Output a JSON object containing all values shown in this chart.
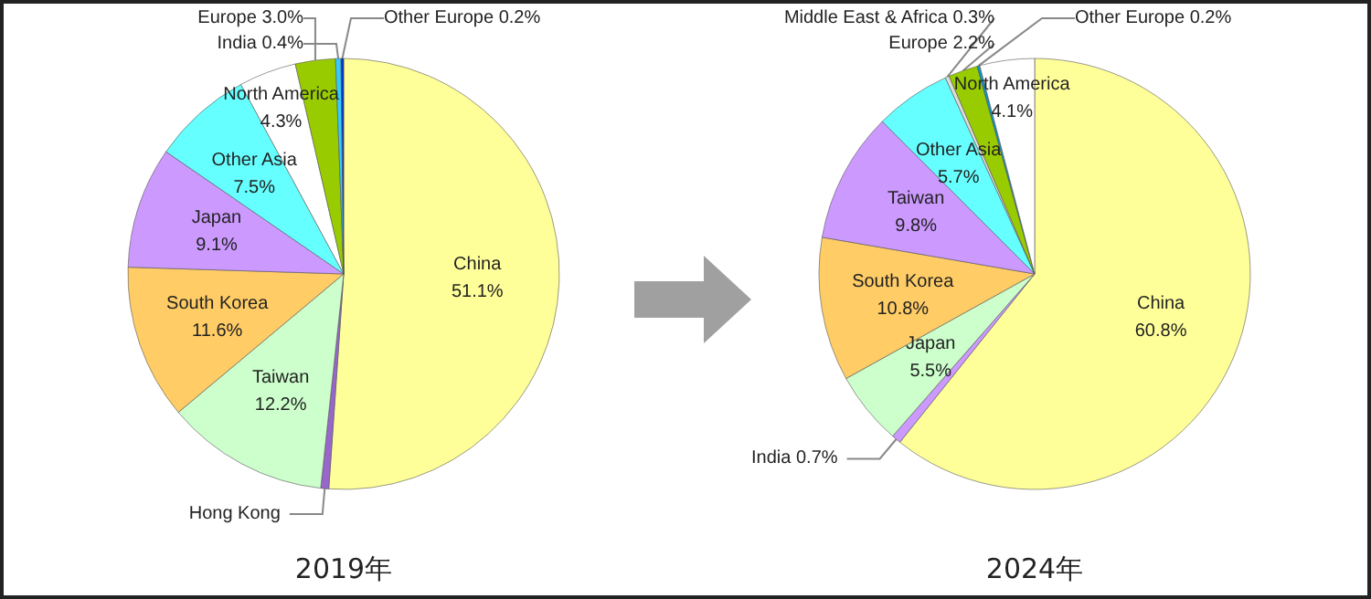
{
  "chart_data": [
    {
      "type": "pie",
      "title": "2019年",
      "categories": [
        "China",
        "Hong Kong",
        "Taiwan",
        "South Korea",
        "Japan",
        "Other Asia",
        "North America",
        "Europe",
        "India",
        "Other Europe"
      ],
      "values": [
        51.1,
        0.6,
        12.2,
        11.6,
        9.1,
        7.5,
        4.3,
        3.0,
        0.4,
        0.2
      ],
      "value_labels": [
        "51.1%",
        null,
        "12.2%",
        "11.6%",
        "9.1%",
        "7.5%",
        "4.3%",
        "3.0%",
        "0.4%",
        "0.2%"
      ],
      "colors": [
        "#ffff99",
        "#9966cc",
        "#ccffcc",
        "#ffcc66",
        "#cc99ff",
        "#66ffff",
        "#ffffff",
        "#99cc00",
        "#33ccff",
        "#0033cc"
      ]
    },
    {
      "type": "pie",
      "title": "2024年",
      "categories": [
        "China",
        "India",
        "Japan",
        "South Korea",
        "Taiwan",
        "Other Asia",
        "Middle East & Africa",
        "Europe",
        "Other Europe",
        "North America"
      ],
      "values": [
        60.8,
        0.7,
        5.5,
        10.8,
        9.8,
        5.7,
        0.3,
        2.2,
        0.2,
        4.1
      ],
      "value_labels": [
        "60.8%",
        "0.7%",
        "5.5%",
        "10.8%",
        "9.8%",
        "5.7%",
        "0.3%",
        "2.2%",
        "0.2%",
        "4.1%"
      ],
      "colors": [
        "#ffff99",
        "#cc99ff",
        "#ccffcc",
        "#ffcc66",
        "#cc99ff",
        "#66ffff",
        "#dddddd",
        "#99cc00",
        "#0099cc",
        "#ffffff"
      ]
    }
  ]
}
